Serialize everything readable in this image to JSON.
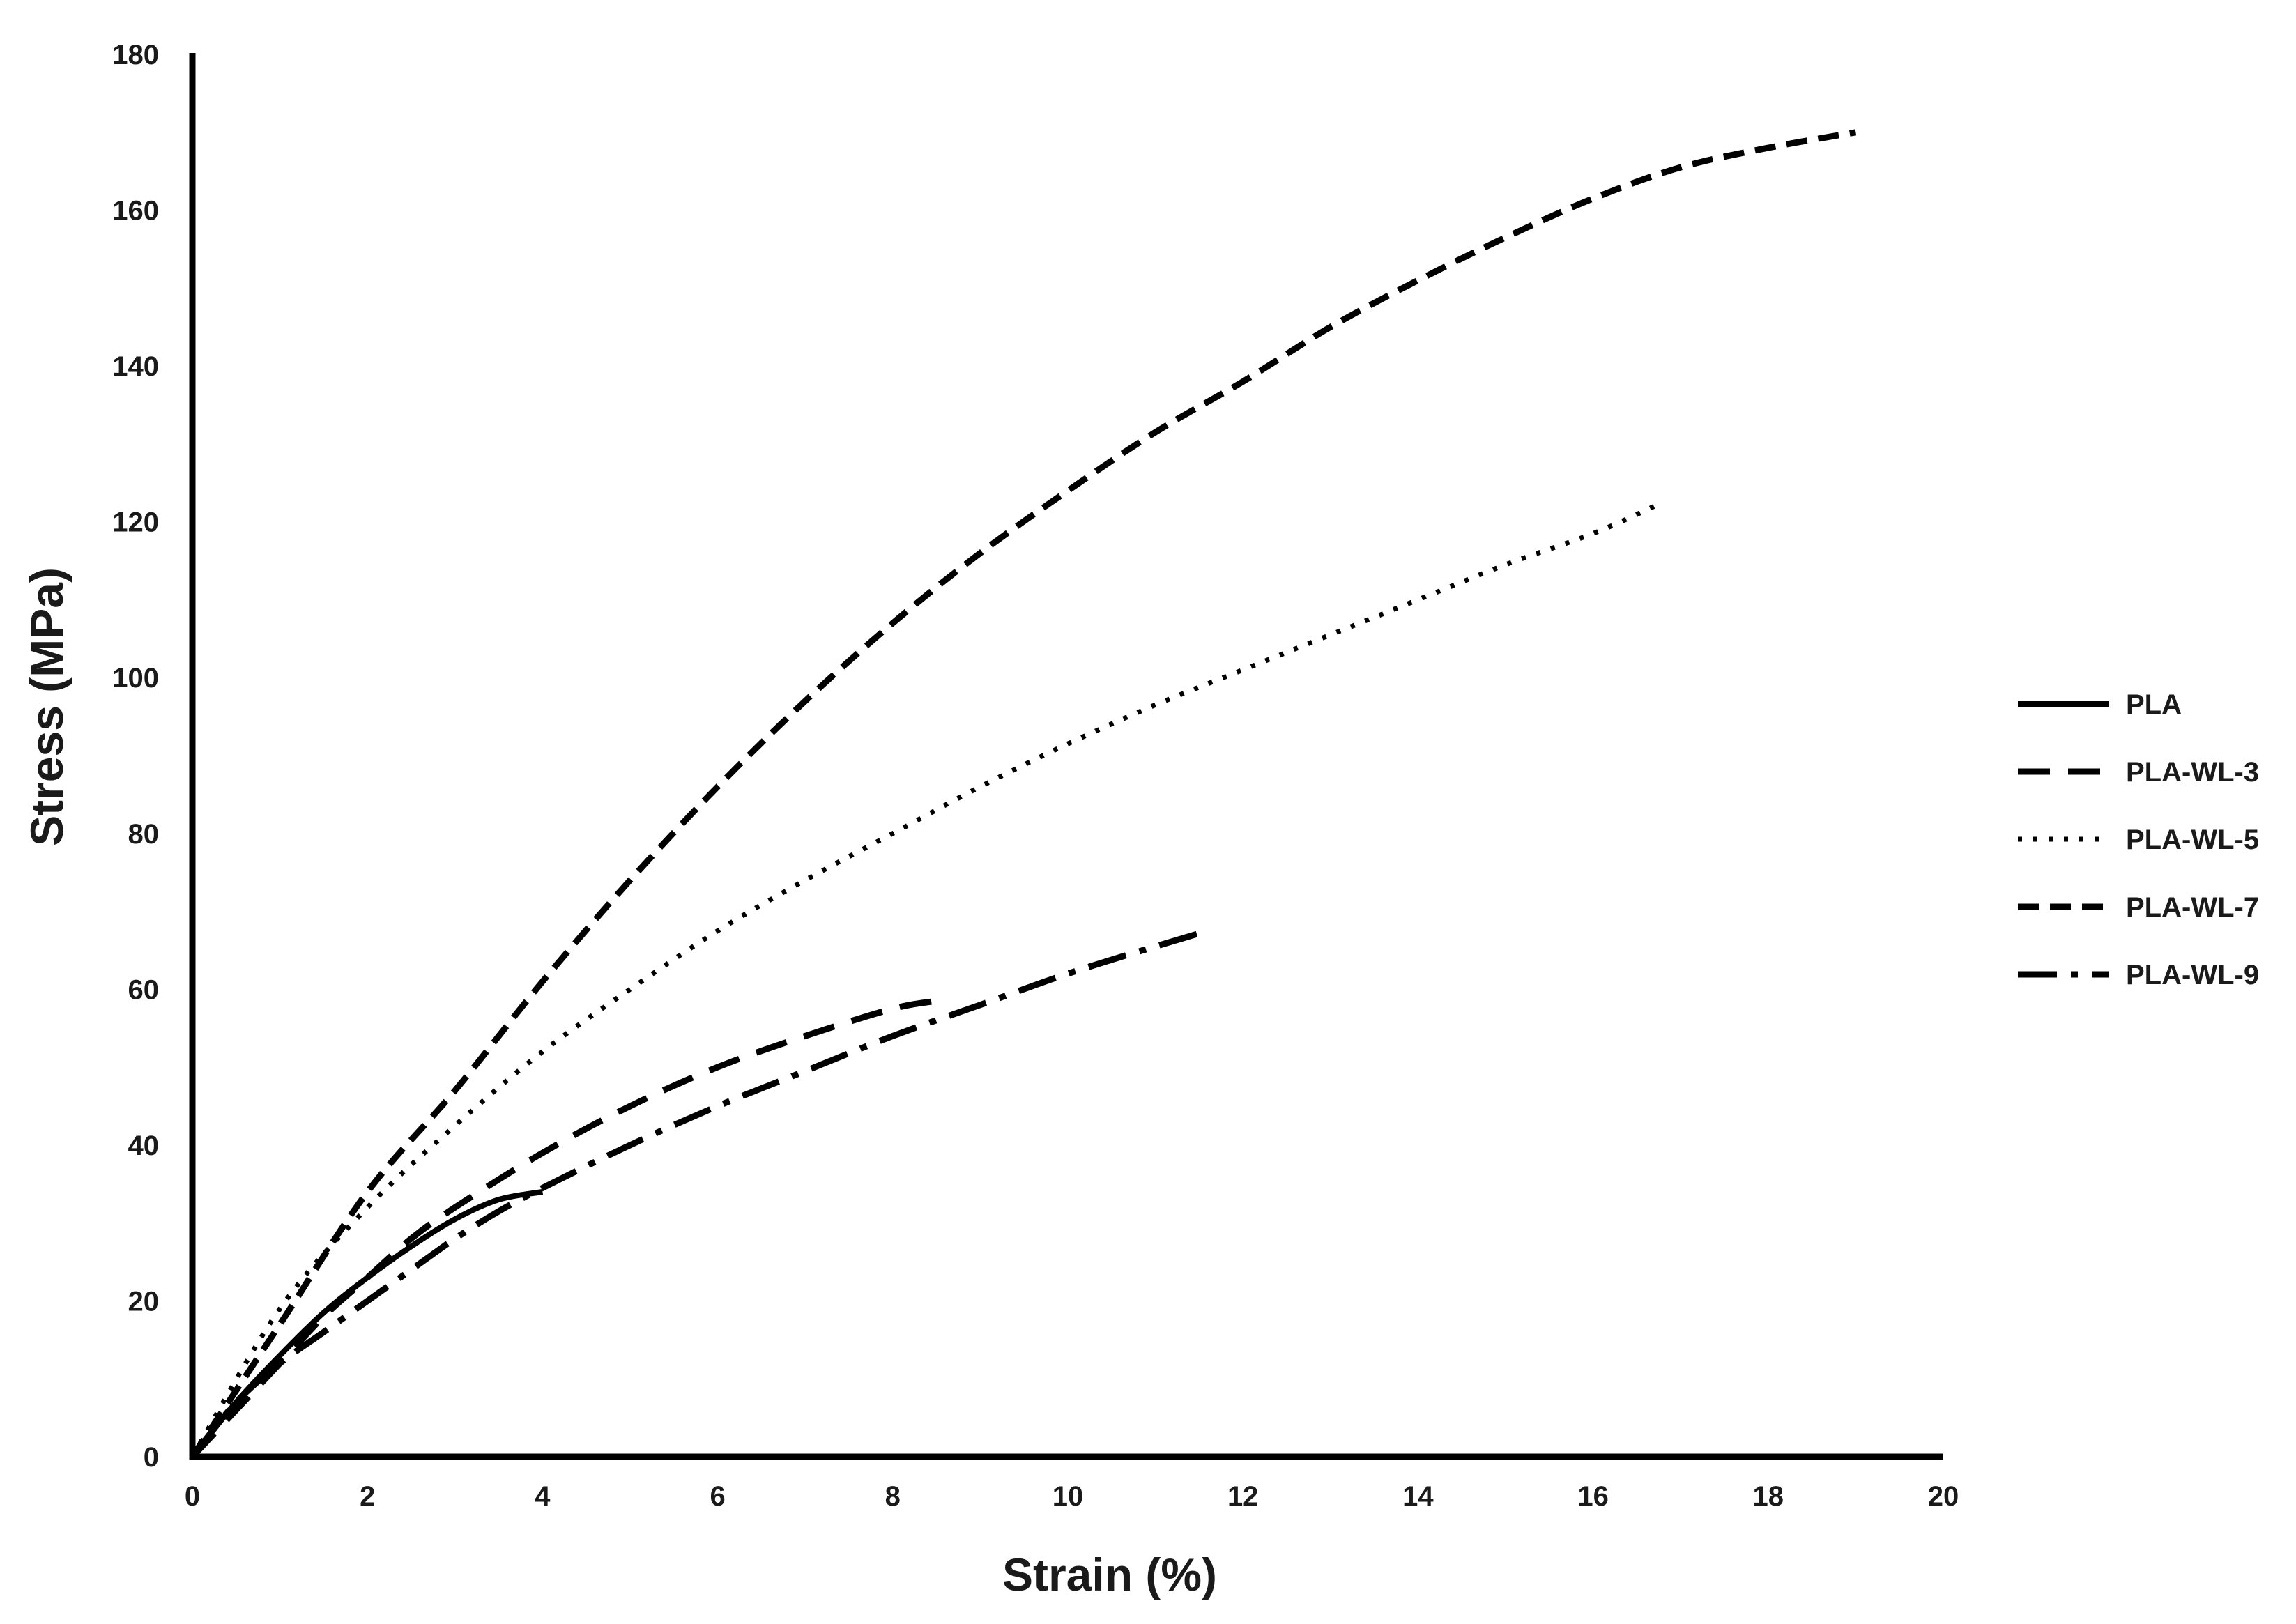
{
  "chart_data": {
    "type": "line",
    "title": "",
    "xlabel": "Strain (%)",
    "ylabel": "Stress (MPa)",
    "xlim": [
      0,
      20
    ],
    "ylim": [
      0,
      180
    ],
    "xticks": [
      0,
      2,
      4,
      6,
      8,
      10,
      12,
      14,
      16,
      18,
      20
    ],
    "yticks": [
      0,
      20,
      40,
      60,
      80,
      100,
      120,
      140,
      160,
      180
    ],
    "grid": false,
    "legend_position": "right",
    "series": [
      {
        "name": "PLA",
        "style": "solid",
        "color": "#000000",
        "points": [
          [
            0,
            0
          ],
          [
            0.5,
            7
          ],
          [
            1,
            13
          ],
          [
            1.5,
            18.5
          ],
          [
            2,
            23
          ],
          [
            2.5,
            27
          ],
          [
            3,
            30.5
          ],
          [
            3.5,
            33
          ],
          [
            4,
            34
          ]
        ]
      },
      {
        "name": "PLA-WL-3",
        "style": "long-dash",
        "color": "#000000",
        "points": [
          [
            0,
            0
          ],
          [
            0.5,
            6
          ],
          [
            1,
            12
          ],
          [
            1.5,
            18
          ],
          [
            2,
            23
          ],
          [
            2.5,
            28
          ],
          [
            3,
            32
          ],
          [
            4,
            39
          ],
          [
            5,
            45
          ],
          [
            6,
            50
          ],
          [
            7,
            54
          ],
          [
            8,
            57.5
          ],
          [
            8.5,
            58.5
          ]
        ]
      },
      {
        "name": "PLA-WL-5",
        "style": "dotted",
        "color": "#000000",
        "points": [
          [
            0,
            0
          ],
          [
            1,
            19
          ],
          [
            2,
            32
          ],
          [
            3,
            42.5
          ],
          [
            4,
            52
          ],
          [
            5,
            60
          ],
          [
            6,
            67.5
          ],
          [
            7,
            74
          ],
          [
            8,
            80
          ],
          [
            9,
            86
          ],
          [
            10,
            91.5
          ],
          [
            11,
            96.5
          ],
          [
            12,
            101
          ],
          [
            13,
            105.5
          ],
          [
            14,
            110
          ],
          [
            15,
            114.5
          ],
          [
            16,
            118.5
          ],
          [
            16.7,
            122
          ]
        ]
      },
      {
        "name": "PLA-WL-7",
        "style": "dash",
        "color": "#000000",
        "points": [
          [
            0,
            0
          ],
          [
            1,
            17
          ],
          [
            2,
            34
          ],
          [
            3,
            47
          ],
          [
            4,
            61
          ],
          [
            5,
            74
          ],
          [
            6,
            86
          ],
          [
            7,
            97
          ],
          [
            8,
            107
          ],
          [
            9,
            116
          ],
          [
            10,
            124
          ],
          [
            11,
            131.5
          ],
          [
            12,
            138
          ],
          [
            13,
            145
          ],
          [
            14,
            151
          ],
          [
            15,
            156.5
          ],
          [
            16,
            161.5
          ],
          [
            17,
            165.5
          ],
          [
            18,
            168
          ],
          [
            19,
            170
          ]
        ]
      },
      {
        "name": "PLA-WL-9",
        "style": "dash-dot",
        "color": "#000000",
        "points": [
          [
            0,
            0
          ],
          [
            0.5,
            7
          ],
          [
            1,
            12
          ],
          [
            1.5,
            16
          ],
          [
            2,
            20
          ],
          [
            2.5,
            24
          ],
          [
            3,
            28
          ],
          [
            3.5,
            31.5
          ],
          [
            4,
            34.5
          ],
          [
            5,
            40
          ],
          [
            6,
            45
          ],
          [
            7,
            49.5
          ],
          [
            8,
            54
          ],
          [
            9,
            58
          ],
          [
            10,
            62
          ],
          [
            11,
            65.5
          ],
          [
            11.6,
            67.5
          ]
        ]
      }
    ]
  }
}
